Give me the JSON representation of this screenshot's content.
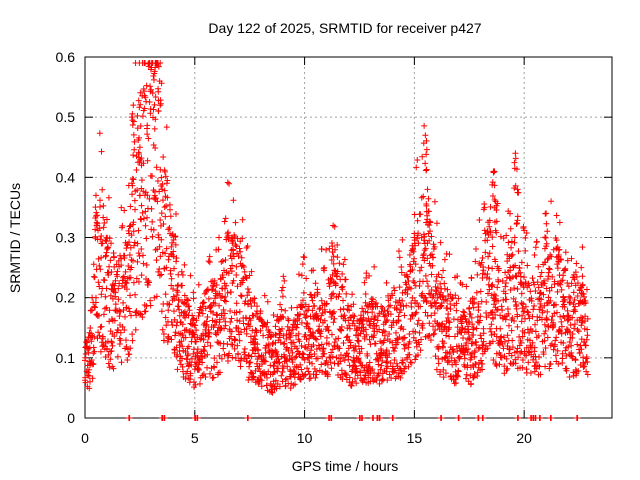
{
  "chart_data": {
    "type": "scatter",
    "title": "Day 122 of 2025, SRMTID for receiver p427",
    "xlabel": "GPS time / hours",
    "ylabel": "SRMTID / TECUs",
    "xlim": [
      0,
      24
    ],
    "ylim": [
      0,
      0.6
    ],
    "xticks": [
      0,
      5,
      10,
      15,
      20
    ],
    "xtick_labels": [
      "0",
      "5",
      "10",
      "15",
      "20"
    ],
    "yticks": [
      0,
      0.1,
      0.2,
      0.3,
      0.4,
      0.5,
      0.6
    ],
    "ytick_labels": [
      "0",
      "0.1",
      "0.2",
      "0.3",
      "0.4",
      "0.5",
      "0.6"
    ],
    "grid": true,
    "marker": "+",
    "marker_color": "#ff0000",
    "series": [
      {
        "name": "SRMTID",
        "profile_points": [
          [
            0.0,
            0.08
          ],
          [
            0.3,
            0.12
          ],
          [
            0.5,
            0.22
          ],
          [
            0.8,
            0.25
          ],
          [
            1.0,
            0.19
          ],
          [
            1.5,
            0.17
          ],
          [
            2.0,
            0.2
          ],
          [
            2.2,
            0.3
          ],
          [
            2.5,
            0.36
          ],
          [
            3.0,
            0.4
          ],
          [
            3.3,
            0.45
          ],
          [
            3.5,
            0.3
          ],
          [
            3.8,
            0.25
          ],
          [
            4.2,
            0.18
          ],
          [
            4.6,
            0.14
          ],
          [
            5.0,
            0.1
          ],
          [
            5.5,
            0.14
          ],
          [
            6.0,
            0.15
          ],
          [
            6.5,
            0.21
          ],
          [
            7.0,
            0.2
          ],
          [
            7.5,
            0.13
          ],
          [
            8.0,
            0.12
          ],
          [
            8.5,
            0.09
          ],
          [
            9.0,
            0.12
          ],
          [
            9.5,
            0.1
          ],
          [
            10.0,
            0.14
          ],
          [
            10.5,
            0.13
          ],
          [
            11.0,
            0.15
          ],
          [
            11.5,
            0.16
          ],
          [
            12.0,
            0.12
          ],
          [
            12.5,
            0.11
          ],
          [
            13.0,
            0.13
          ],
          [
            13.5,
            0.12
          ],
          [
            14.0,
            0.14
          ],
          [
            14.5,
            0.15
          ],
          [
            15.0,
            0.2
          ],
          [
            15.5,
            0.26
          ],
          [
            16.0,
            0.17
          ],
          [
            16.5,
            0.14
          ],
          [
            17.0,
            0.12
          ],
          [
            17.5,
            0.11
          ],
          [
            18.0,
            0.17
          ],
          [
            18.5,
            0.22
          ],
          [
            19.0,
            0.15
          ],
          [
            19.5,
            0.2
          ],
          [
            20.0,
            0.16
          ],
          [
            20.5,
            0.15
          ],
          [
            21.0,
            0.17
          ],
          [
            21.5,
            0.2
          ],
          [
            22.0,
            0.15
          ],
          [
            22.5,
            0.16
          ],
          [
            22.9,
            0.12
          ]
        ],
        "spikes": [
          {
            "x": 2.2,
            "y": 0.52
          },
          {
            "x": 2.5,
            "y": 0.45
          },
          {
            "x": 3.2,
            "y": 0.59
          },
          {
            "x": 3.4,
            "y": 0.56
          },
          {
            "x": 1.0,
            "y": 0.33
          },
          {
            "x": 0.5,
            "y": 0.37
          },
          {
            "x": 6.7,
            "y": 0.3
          },
          {
            "x": 11.3,
            "y": 0.32
          },
          {
            "x": 15.0,
            "y": 0.3
          },
          {
            "x": 15.5,
            "y": 0.47
          },
          {
            "x": 15.6,
            "y": 0.38
          },
          {
            "x": 18.6,
            "y": 0.41
          },
          {
            "x": 18.7,
            "y": 0.36
          },
          {
            "x": 19.6,
            "y": 0.44
          },
          {
            "x": 19.7,
            "y": 0.38
          },
          {
            "x": 21.0,
            "y": 0.34
          },
          {
            "x": 22.6,
            "y": 0.25
          },
          {
            "x": 21.6,
            "y": 0.28
          }
        ],
        "zero_values_at": [
          2.0,
          3.5,
          3.6,
          5.0,
          5.1,
          7.4,
          11.1,
          11.2,
          12.5,
          12.6,
          13.1,
          13.3,
          13.4,
          14.0,
          16.2,
          17.0,
          17.9,
          18.1,
          19.7,
          20.3,
          20.4,
          20.5,
          20.7,
          21.2,
          22.4
        ]
      }
    ]
  }
}
